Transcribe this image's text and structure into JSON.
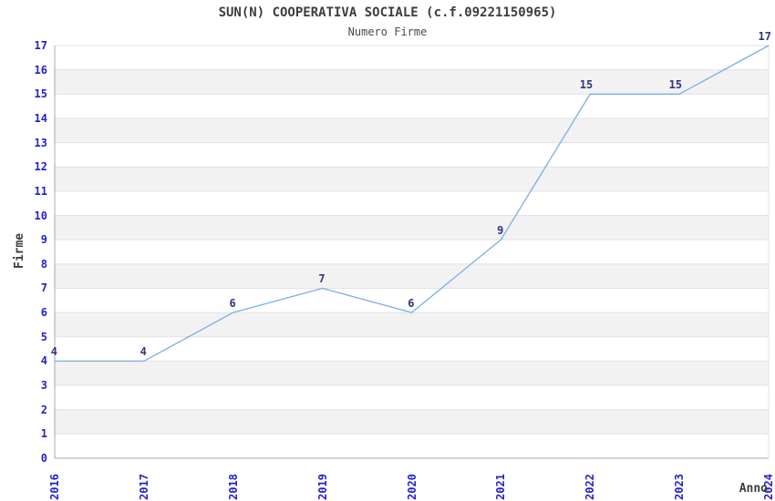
{
  "chart_data": {
    "type": "line",
    "title": "SUN(N) COOPERATIVA SOCIALE (c.f.09221150965)",
    "subtitle": "Numero Firme",
    "xlabel": "Anno",
    "ylabel": "Firme",
    "categories": [
      "2016",
      "2017",
      "2018",
      "2019",
      "2020",
      "2021",
      "2022",
      "2023",
      "2024"
    ],
    "values": [
      4,
      4,
      6,
      7,
      6,
      9,
      15,
      15,
      17
    ],
    "ylim": [
      0,
      17
    ],
    "ytick_step": 1,
    "grid": "horizontal-with-alternating-bands",
    "legend": "none",
    "colors": {
      "line": "#7aaee8",
      "tick_label": "#2222cc",
      "data_label": "#333380",
      "band": "#f2f2f2",
      "gridline": "#e1e1e1",
      "axis": "#a8a8a8",
      "title_text": "#3d3d3d"
    }
  }
}
